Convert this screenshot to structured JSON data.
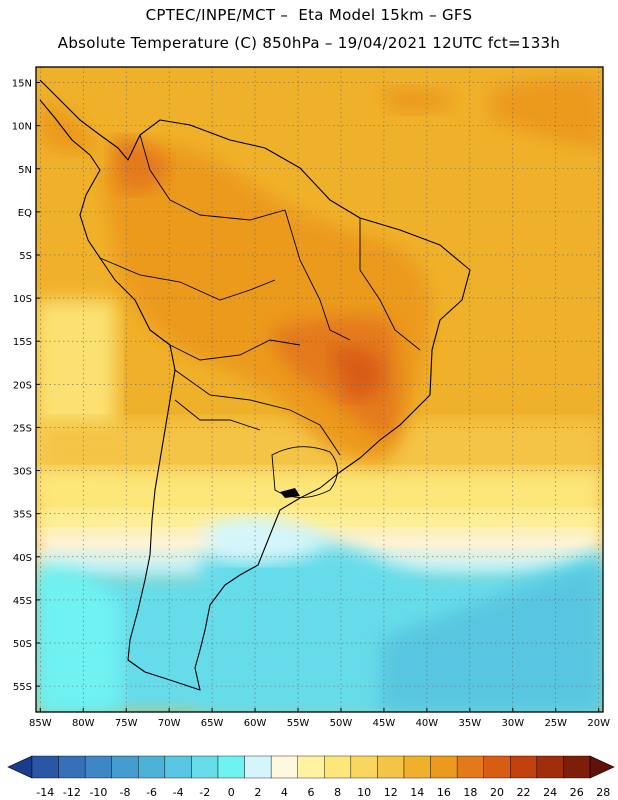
{
  "header": {
    "line1": "CPTEC/INPE/MCT –  Eta Model 15km – GFS",
    "line2": "Absolute Temperature (C) 850hPa – 19/04/2021 12UTC fct=133h"
  },
  "map": {
    "lat_labels": [
      "15N",
      "10N",
      "5N",
      "EQ",
      "5S",
      "10S",
      "15S",
      "20S",
      "25S",
      "30S",
      "35S",
      "40S",
      "45S",
      "50S",
      "55S"
    ],
    "lat_values": [
      15,
      10,
      5,
      0,
      -5,
      -10,
      -15,
      -20,
      -25,
      -30,
      -35,
      -40,
      -45,
      -50,
      -55
    ],
    "lon_labels": [
      "85W",
      "80W",
      "75W",
      "70W",
      "65W",
      "60W",
      "55W",
      "50W",
      "45W",
      "40W",
      "35W",
      "30W",
      "25W",
      "20W"
    ],
    "lon_values": [
      -85,
      -80,
      -75,
      -70,
      -65,
      -60,
      -55,
      -50,
      -45,
      -40,
      -35,
      -30,
      -25,
      -20
    ],
    "lon_range": [
      -85.5,
      -19.5
    ],
    "lat_range": [
      -58,
      16.8
    ],
    "grid": "dotted"
  },
  "colorbar": {
    "labels": [
      "-14",
      "-12",
      "-10",
      "-8",
      "-6",
      "-4",
      "-2",
      "0",
      "2",
      "4",
      "6",
      "8",
      "10",
      "12",
      "14",
      "16",
      "18",
      "20",
      "22",
      "24",
      "26",
      "28"
    ],
    "colors": [
      "#1a3c8c",
      "#2a56a6",
      "#3570b8",
      "#3e86c4",
      "#469ccf",
      "#4eb2d8",
      "#58c6e0",
      "#66dcea",
      "#6ff2f2",
      "#d4f6fb",
      "#fff8e0",
      "#fff2a0",
      "#fde77a",
      "#f9d65e",
      "#f4c446",
      "#f0b12a",
      "#ec9a1e",
      "#e4791a",
      "#d95c13",
      "#c2410f",
      "#a02d0c",
      "#7e1e0a",
      "#5e1208"
    ]
  }
}
